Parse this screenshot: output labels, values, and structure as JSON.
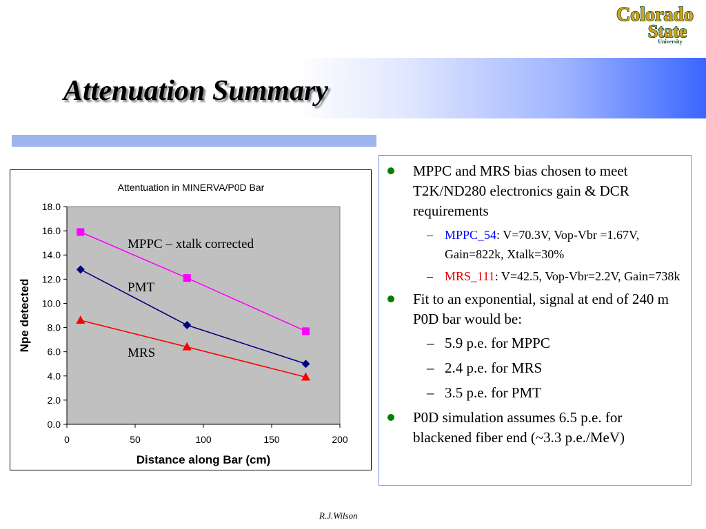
{
  "slide": {
    "title": "Attenuation Summary",
    "footer": "R.J.Wilson",
    "logo": {
      "line1": "Colorado",
      "line2": "State",
      "line3": "University"
    }
  },
  "colors": {
    "accent_band": "#3a66ff",
    "rule": "#9eb4ee",
    "bullet": "#008000",
    "mppc_tag": "#0000ff",
    "mrs_tag": "#e00000",
    "logo_gold": "#d6a21e",
    "logo_green": "#0b4d2c"
  },
  "bullets": [
    {
      "text": "MPPC and MRS bias chosen to meet T2K/ND280 electronics gain & DCR requirements",
      "subs": [
        {
          "tag": "MPPC_54",
          "text": ": V=70.3V, Vop-Vbr =1.67V, Gain=822k, Xtalk=30%"
        },
        {
          "tag": "MRS_111",
          "text": ": V=42.5, Vop-Vbr=2.2V, Gain=738k"
        }
      ]
    },
    {
      "text": "Fit to an exponential, signal at end of 240 m P0D bar would be:",
      "subs": [
        {
          "text": "5.9 p.e. for MPPC"
        },
        {
          "text": "2.4 p.e. for MRS"
        },
        {
          "text": "3.5 p.e. for PMT"
        }
      ]
    },
    {
      "text": "P0D simulation assumes 6.5 p.e. for blackened fiber end (~3.3 p.e./MeV)",
      "subs": []
    }
  ],
  "chart_data": {
    "type": "line",
    "title": "Attentuation in MINERVA/P0D Bar",
    "xlabel": "Distance along Bar (cm)",
    "ylabel": "Npe detected",
    "xlim": [
      0,
      200
    ],
    "ylim": [
      0,
      18
    ],
    "x_ticks": [
      "0",
      "50",
      "100",
      "150",
      "200"
    ],
    "y_ticks": [
      "0.0",
      "2.0",
      "4.0",
      "6.0",
      "8.0",
      "10.0",
      "12.0",
      "14.0",
      "16.0",
      "18.0"
    ],
    "grid": false,
    "plot_background": "#c0c0c0",
    "series": [
      {
        "name": "MPPC – xtalk corrected",
        "marker": "square",
        "color": "#ff00ff",
        "x": [
          10,
          88,
          175
        ],
        "y": [
          15.9,
          12.1,
          7.7
        ]
      },
      {
        "name": "PMT",
        "marker": "diamond",
        "color": "#000080",
        "x": [
          10,
          88,
          175
        ],
        "y": [
          12.8,
          8.2,
          5.0
        ]
      },
      {
        "name": "MRS",
        "marker": "triangle",
        "color": "#ff0000",
        "x": [
          10,
          88,
          175
        ],
        "y": [
          8.6,
          6.4,
          3.9
        ]
      }
    ]
  }
}
